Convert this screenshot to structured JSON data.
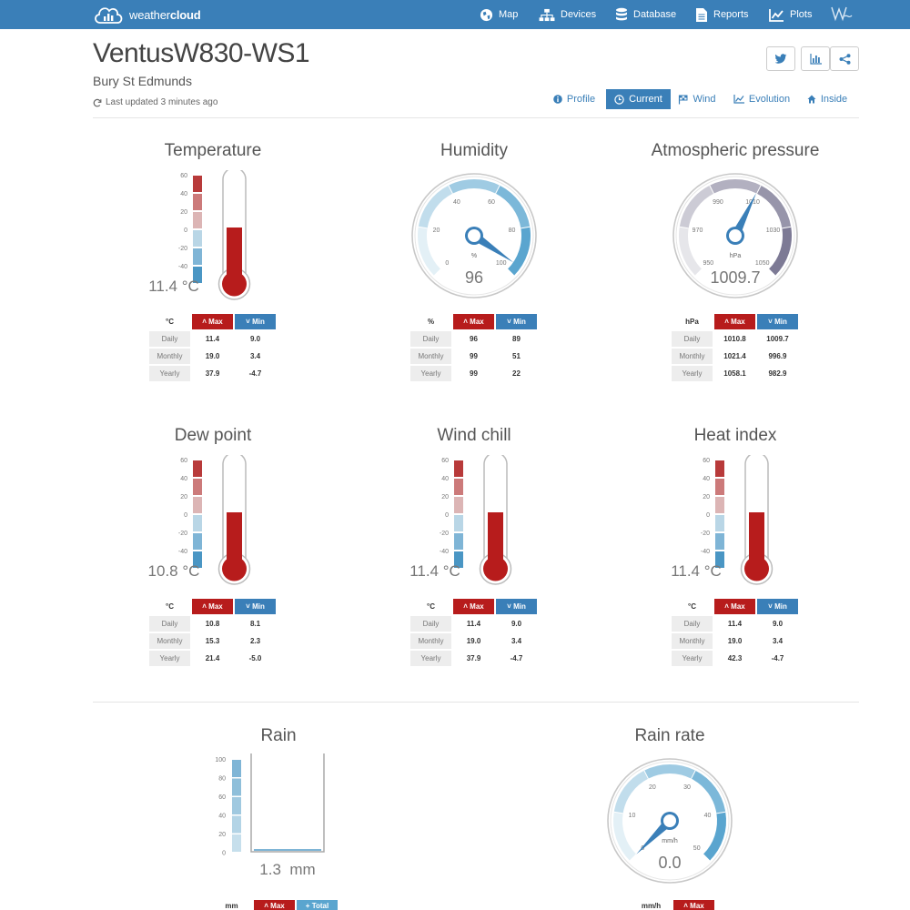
{
  "nav": {
    "brand_light": "weather",
    "brand_bold": "cloud",
    "items": [
      {
        "label": "Map",
        "icon": "globe-icon"
      },
      {
        "label": "Devices",
        "icon": "sitemap-icon"
      },
      {
        "label": "Database",
        "icon": "database-icon"
      },
      {
        "label": "Reports",
        "icon": "file-icon"
      },
      {
        "label": "Plots",
        "icon": "line-chart-icon"
      }
    ],
    "logo_text": "W"
  },
  "header": {
    "station": "VentusW830-WS1",
    "location": "Bury St Edmunds",
    "last_updated": "Last updated 3 minutes ago"
  },
  "tabs": [
    {
      "label": "Profile",
      "icon": "info-icon"
    },
    {
      "label": "Current",
      "icon": "clock-icon",
      "active": true
    },
    {
      "label": "Wind",
      "icon": "flag-icon"
    },
    {
      "label": "Evolution",
      "icon": "line-chart-icon"
    },
    {
      "label": "Inside",
      "icon": "home-icon"
    }
  ],
  "stat_headers": {
    "max": "Max",
    "min": "Min",
    "total": "Total"
  },
  "widgets": {
    "temperature": {
      "title": "Temperature",
      "value": "11.4 °C",
      "fill": 0.42,
      "unit": "°C",
      "scale": [
        "60",
        "40",
        "20",
        "0",
        "-20",
        "-40"
      ],
      "rows": [
        {
          "label": "Daily",
          "max": "11.4",
          "min": "9.0"
        },
        {
          "label": "Monthly",
          "max": "19.0",
          "min": "3.4"
        },
        {
          "label": "Yearly",
          "max": "37.9",
          "min": "-4.7"
        }
      ]
    },
    "humidity": {
      "title": "Humidity",
      "value": "96",
      "unit_label": "%",
      "percent": 96,
      "unit": "%",
      "ticks": [
        "0",
        "20",
        "40",
        "60",
        "80",
        "100"
      ],
      "rows": [
        {
          "label": "Daily",
          "max": "96",
          "min": "89"
        },
        {
          "label": "Monthly",
          "max": "99",
          "min": "51"
        },
        {
          "label": "Yearly",
          "max": "99",
          "min": "22"
        }
      ]
    },
    "pressure": {
      "title": "Atmospheric pressure",
      "value": "1009.7",
      "unit_label": "hPa",
      "hpa": 1009.7,
      "unit": "hPa",
      "ticks": [
        "950",
        "970",
        "990",
        "1010",
        "1030",
        "1050"
      ],
      "rows": [
        {
          "label": "Daily",
          "max": "1010.8",
          "min": "1009.7"
        },
        {
          "label": "Monthly",
          "max": "1021.4",
          "min": "996.9"
        },
        {
          "label": "Yearly",
          "max": "1058.1",
          "min": "982.9"
        }
      ]
    },
    "dewpoint": {
      "title": "Dew point",
      "value": "10.8 °C",
      "fill": 0.42,
      "unit": "°C",
      "scale": [
        "60",
        "40",
        "20",
        "0",
        "-20",
        "-40"
      ],
      "rows": [
        {
          "label": "Daily",
          "max": "10.8",
          "min": "8.1"
        },
        {
          "label": "Monthly",
          "max": "15.3",
          "min": "2.3"
        },
        {
          "label": "Yearly",
          "max": "21.4",
          "min": "-5.0"
        }
      ]
    },
    "windchill": {
      "title": "Wind chill",
      "value": "11.4 °C",
      "fill": 0.42,
      "unit": "°C",
      "scale": [
        "60",
        "40",
        "20",
        "0",
        "-20",
        "-40"
      ],
      "rows": [
        {
          "label": "Daily",
          "max": "11.4",
          "min": "9.0"
        },
        {
          "label": "Monthly",
          "max": "19.0",
          "min": "3.4"
        },
        {
          "label": "Yearly",
          "max": "37.9",
          "min": "-4.7"
        }
      ]
    },
    "heatindex": {
      "title": "Heat index",
      "value": "11.4 °C",
      "fill": 0.42,
      "unit": "°C",
      "scale": [
        "60",
        "40",
        "20",
        "0",
        "-20",
        "-40"
      ],
      "rows": [
        {
          "label": "Daily",
          "max": "11.4",
          "min": "9.0"
        },
        {
          "label": "Monthly",
          "max": "19.0",
          "min": "3.4"
        },
        {
          "label": "Yearly",
          "max": "42.3",
          "min": "-4.7"
        }
      ]
    },
    "rain": {
      "title": "Rain",
      "value": "1.3  mm",
      "unit": "mm",
      "scale": [
        "100",
        "80",
        "60",
        "40",
        "20",
        "0"
      ]
    },
    "rainrate": {
      "title": "Rain rate",
      "value": "0.0",
      "unit_label": "mm/h",
      "unit": "mm/h",
      "ticks": [
        "0",
        "10",
        "20",
        "30",
        "40",
        "50"
      ]
    }
  }
}
